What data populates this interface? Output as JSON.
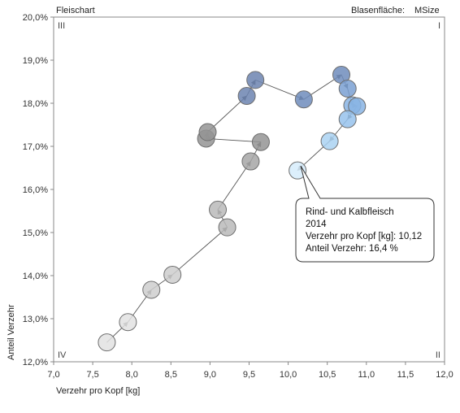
{
  "chart_data": {
    "type": "scatter",
    "title": "Fleischart",
    "size_label": "Blasenfläche:",
    "size_value": "MSize",
    "xlabel": "Verzehr pro Kopf [kg]",
    "ylabel": "Anteil Verzehr",
    "xlim": [
      7.0,
      12.0
    ],
    "ylim": [
      12.0,
      20.0
    ],
    "x_ticks": [
      "7,0",
      "7,5",
      "8,0",
      "8,5",
      "9,0",
      "9,5",
      "10,0",
      "10,5",
      "11,0",
      "11,5",
      "12,0"
    ],
    "y_ticks": [
      "12,0%",
      "13,0%",
      "14,0%",
      "15,0%",
      "16,0%",
      "17,0%",
      "18,0%",
      "19,0%",
      "20,0%"
    ],
    "quadrants": {
      "top_left": "III",
      "top_right": "I",
      "bottom_left": "IV",
      "bottom_right": "II"
    },
    "grid": false,
    "series": [
      {
        "points": [
          {
            "x": 7.68,
            "y": 12.45
          },
          {
            "x": 7.95,
            "y": 12.92
          },
          {
            "x": 8.25,
            "y": 13.67
          },
          {
            "x": 8.52,
            "y": 14.02
          },
          {
            "x": 9.22,
            "y": 15.12
          },
          {
            "x": 9.1,
            "y": 15.53
          },
          {
            "x": 9.52,
            "y": 16.65
          },
          {
            "x": 9.65,
            "y": 17.1
          },
          {
            "x": 8.95,
            "y": 17.18
          },
          {
            "x": 8.97,
            "y": 17.33
          },
          {
            "x": 9.47,
            "y": 18.17
          },
          {
            "x": 9.58,
            "y": 18.54
          },
          {
            "x": 10.2,
            "y": 18.09
          },
          {
            "x": 10.68,
            "y": 18.66
          },
          {
            "x": 10.76,
            "y": 18.34
          },
          {
            "x": 10.82,
            "y": 17.95
          },
          {
            "x": 10.88,
            "y": 17.93
          },
          {
            "x": 10.76,
            "y": 17.63
          },
          {
            "x": 10.53,
            "y": 17.12
          },
          {
            "x": 10.12,
            "y": 16.44
          }
        ]
      }
    ],
    "tooltip": {
      "lines": [
        "Rind- und Kalbfleisch",
        "2014",
        "Verzehr pro Kopf [kg]: 10,12",
        "Anteil Verzehr: 16,4 %"
      ]
    }
  }
}
